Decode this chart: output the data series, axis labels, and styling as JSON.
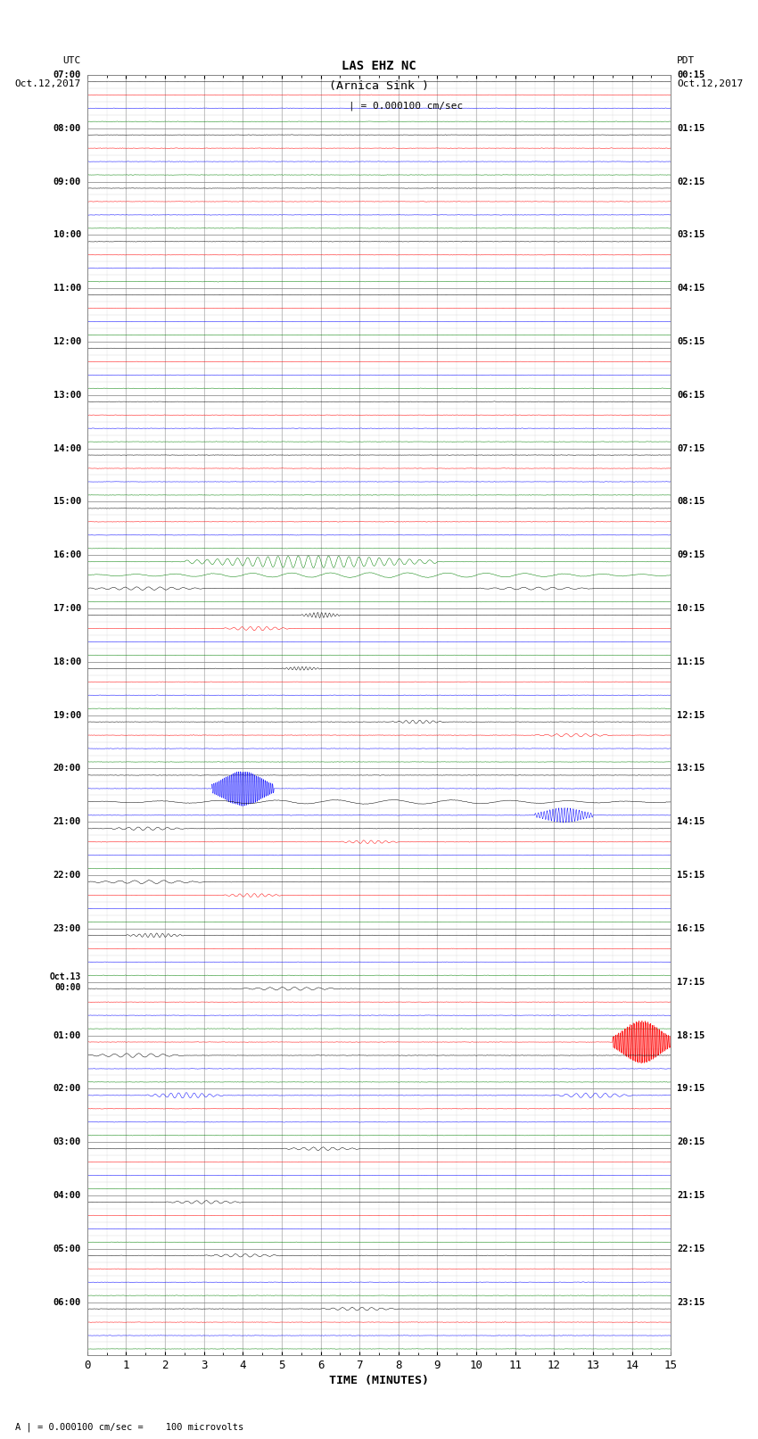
{
  "title_line1": "LAS EHZ NC",
  "title_line2": "(Arnica Sink )",
  "scale_label": "I = 0.000100 cm/sec",
  "left_label1": "UTC",
  "left_label2": "Oct.12,2017",
  "right_label1": "PDT",
  "right_label2": "Oct.12,2017",
  "bottom_label": "TIME (MINUTES)",
  "bottom_note": "= 0.000100 cm/sec =    100 microvolts",
  "num_traces": 96,
  "xlim": [
    0,
    15
  ],
  "xticks": [
    0,
    1,
    2,
    3,
    4,
    5,
    6,
    7,
    8,
    9,
    10,
    11,
    12,
    13,
    14,
    15
  ],
  "background_color": "#ffffff",
  "trace_colors_cycle": [
    "black",
    "red",
    "blue",
    "green"
  ],
  "noise_amplitude": 0.03,
  "figwidth": 8.5,
  "figheight": 16.13,
  "dpi": 100,
  "hour_labels_utc": [
    "07:00",
    "08:00",
    "09:00",
    "10:00",
    "11:00",
    "12:00",
    "13:00",
    "14:00",
    "15:00",
    "16:00",
    "17:00",
    "18:00",
    "19:00",
    "20:00",
    "21:00",
    "22:00",
    "23:00",
    "Oct.13\n00:00",
    "01:00",
    "02:00",
    "03:00",
    "04:00",
    "05:00",
    "06:00"
  ],
  "hour_labels_pdt": [
    "00:15",
    "01:15",
    "02:15",
    "03:15",
    "04:15",
    "05:15",
    "06:15",
    "07:15",
    "08:15",
    "09:15",
    "10:15",
    "11:15",
    "12:15",
    "13:15",
    "14:15",
    "15:15",
    "16:15",
    "17:15",
    "18:15",
    "19:15",
    "20:15",
    "21:15",
    "22:15",
    "23:15"
  ],
  "events": [
    {
      "trace": 36,
      "xstart": 2.5,
      "xend": 9.0,
      "amplitude": 0.45,
      "color": "green",
      "freq": 25
    },
    {
      "trace": 37,
      "xstart": 0.0,
      "xend": 15.0,
      "amplitude": 0.18,
      "color": "green",
      "freq": 15
    },
    {
      "trace": 38,
      "xstart": 0.0,
      "xend": 3.0,
      "amplitude": 0.12,
      "color": "black",
      "freq": 10
    },
    {
      "trace": 38,
      "xstart": 10.0,
      "xend": 13.0,
      "amplitude": 0.1,
      "color": "black",
      "freq": 8
    },
    {
      "trace": 40,
      "xstart": 5.5,
      "xend": 6.5,
      "amplitude": 0.2,
      "color": "black",
      "freq": 10
    },
    {
      "trace": 41,
      "xstart": 3.5,
      "xend": 5.2,
      "amplitude": 0.15,
      "color": "red",
      "freq": 8
    },
    {
      "trace": 44,
      "xstart": 5.0,
      "xend": 6.0,
      "amplitude": 0.13,
      "color": "black",
      "freq": 10
    },
    {
      "trace": 48,
      "xstart": 7.8,
      "xend": 9.2,
      "amplitude": 0.12,
      "color": "black",
      "freq": 8
    },
    {
      "trace": 49,
      "xstart": 11.5,
      "xend": 13.5,
      "amplitude": 0.12,
      "color": "red",
      "freq": 8
    },
    {
      "trace": 53,
      "xstart": 3.2,
      "xend": 4.8,
      "amplitude": 1.3,
      "color": "blue",
      "freq": 35
    },
    {
      "trace": 54,
      "xstart": 0.0,
      "xend": 15.0,
      "amplitude": 0.15,
      "color": "black",
      "freq": 10
    },
    {
      "trace": 55,
      "xstart": 11.5,
      "xend": 13.0,
      "amplitude": 0.55,
      "color": "blue",
      "freq": 20
    },
    {
      "trace": 56,
      "xstart": 0.5,
      "xend": 2.5,
      "amplitude": 0.12,
      "color": "black",
      "freq": 8
    },
    {
      "trace": 57,
      "xstart": 6.5,
      "xend": 8.0,
      "amplitude": 0.12,
      "color": "red",
      "freq": 8
    },
    {
      "trace": 60,
      "xstart": 0.0,
      "xend": 3.0,
      "amplitude": 0.12,
      "color": "black",
      "freq": 8
    },
    {
      "trace": 61,
      "xstart": 3.5,
      "xend": 5.0,
      "amplitude": 0.13,
      "color": "red",
      "freq": 8
    },
    {
      "trace": 64,
      "xstart": 1.0,
      "xend": 2.5,
      "amplitude": 0.15,
      "color": "black",
      "freq": 10
    },
    {
      "trace": 68,
      "xstart": 4.0,
      "xend": 6.5,
      "amplitude": 0.12,
      "color": "black",
      "freq": 8
    },
    {
      "trace": 72,
      "xstart": 13.5,
      "xend": 15.0,
      "amplitude": 1.6,
      "color": "red",
      "freq": 40
    },
    {
      "trace": 73,
      "xstart": 0.0,
      "xend": 2.5,
      "amplitude": 0.15,
      "color": "black",
      "freq": 8
    },
    {
      "trace": 76,
      "xstart": 1.5,
      "xend": 3.5,
      "amplitude": 0.2,
      "color": "black",
      "freq": 10
    },
    {
      "trace": 76,
      "xstart": 12.0,
      "xend": 14.0,
      "amplitude": 0.18,
      "color": "blue",
      "freq": 8
    },
    {
      "trace": 80,
      "xstart": 5.0,
      "xend": 7.0,
      "amplitude": 0.12,
      "color": "black",
      "freq": 8
    },
    {
      "trace": 84,
      "xstart": 2.0,
      "xend": 4.0,
      "amplitude": 0.12,
      "color": "black",
      "freq": 8
    },
    {
      "trace": 88,
      "xstart": 3.0,
      "xend": 5.0,
      "amplitude": 0.12,
      "color": "black",
      "freq": 8
    },
    {
      "trace": 92,
      "xstart": 6.0,
      "xend": 8.0,
      "amplitude": 0.12,
      "color": "black",
      "freq": 8
    }
  ]
}
